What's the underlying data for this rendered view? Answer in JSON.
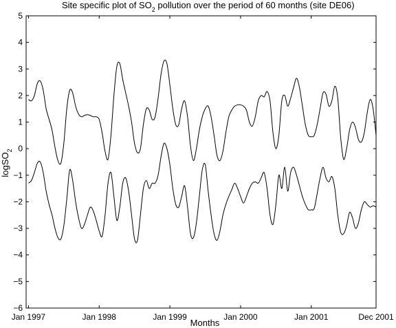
{
  "chart_data": {
    "type": "line",
    "title": "Site specific plot of SO₂ pollution over the period of 60 months (site DE06)",
    "title_parts": {
      "prefix": "Site specific plot of SO",
      "subscript": "2",
      "suffix": " pollution over the period of 60 months (site DE06)"
    },
    "xlabel": "Months",
    "ylabel": "logSO₂",
    "ylabel_parts": {
      "prefix": "logSO",
      "subscript": "2"
    },
    "x_tick_labels": [
      "Jan 1997",
      "Jan 1998",
      "Jan 1999",
      "Jan 2000",
      "Jan 2001",
      "Dec 2001"
    ],
    "x_tick_values": [
      0,
      12,
      24,
      36,
      48,
      59
    ],
    "xlim": [
      -0.4,
      59
    ],
    "y_ticks": [
      -6,
      -5,
      -4,
      -3,
      -2,
      -1,
      0,
      1,
      2,
      3,
      4,
      5
    ],
    "ylim": [
      -6,
      5
    ],
    "grid": false,
    "series": [
      {
        "points": [
          [
            0,
            1.85
          ],
          [
            0.5,
            1.8
          ],
          [
            1,
            2.0
          ],
          [
            1.5,
            2.45
          ],
          [
            2,
            2.55
          ],
          [
            2.5,
            2.2
          ],
          [
            3,
            1.5
          ],
          [
            3.5,
            1.1
          ],
          [
            4,
            0.7
          ],
          [
            4.5,
            0.05
          ],
          [
            5,
            -0.45
          ],
          [
            5.5,
            -0.55
          ],
          [
            6,
            0.2
          ],
          [
            6.5,
            1.5
          ],
          [
            7,
            2.2
          ],
          [
            7.5,
            2.1
          ],
          [
            8,
            1.6
          ],
          [
            8.5,
            1.3
          ],
          [
            9,
            1.2
          ],
          [
            9.5,
            1.25
          ],
          [
            10,
            1.28
          ],
          [
            10.5,
            1.25
          ],
          [
            11,
            1.2
          ],
          [
            11.5,
            1.2
          ],
          [
            12,
            1.1
          ],
          [
            12.5,
            0.6
          ],
          [
            13,
            -0.1
          ],
          [
            13.5,
            -0.4
          ],
          [
            14,
            0.5
          ],
          [
            14.5,
            2.0
          ],
          [
            15,
            3.1
          ],
          [
            15.5,
            3.2
          ],
          [
            16,
            2.6
          ],
          [
            16.5,
            2.1
          ],
          [
            17,
            1.6
          ],
          [
            17.5,
            1.0
          ],
          [
            18,
            0.2
          ],
          [
            18.5,
            -0.15
          ],
          [
            19,
            0.0
          ],
          [
            19.5,
            0.9
          ],
          [
            20,
            1.5
          ],
          [
            20.5,
            1.45
          ],
          [
            21,
            1.1
          ],
          [
            21.5,
            1.2
          ],
          [
            22,
            1.9
          ],
          [
            22.5,
            2.8
          ],
          [
            23,
            3.3
          ],
          [
            23.5,
            3.2
          ],
          [
            24,
            2.4
          ],
          [
            24.5,
            1.5
          ],
          [
            25,
            0.9
          ],
          [
            25.5,
            0.9
          ],
          [
            26,
            1.5
          ],
          [
            26.5,
            1.8
          ],
          [
            27,
            1.2
          ],
          [
            27.5,
            0.1
          ],
          [
            28,
            -0.45
          ],
          [
            28.5,
            0.0
          ],
          [
            29,
            0.7
          ],
          [
            29.5,
            1.2
          ],
          [
            30,
            1.5
          ],
          [
            30.5,
            1.6
          ],
          [
            31,
            1.2
          ],
          [
            31.5,
            0.5
          ],
          [
            32,
            -0.25
          ],
          [
            32.5,
            -0.45
          ],
          [
            33,
            -0.1
          ],
          [
            33.5,
            0.6
          ],
          [
            34,
            1.2
          ],
          [
            34.5,
            1.45
          ],
          [
            35,
            1.6
          ],
          [
            35.5,
            1.65
          ],
          [
            36,
            1.65
          ],
          [
            36.5,
            1.6
          ],
          [
            37,
            1.45
          ],
          [
            37.5,
            1.0
          ],
          [
            38,
            0.85
          ],
          [
            38.5,
            1.2
          ],
          [
            39,
            1.8
          ],
          [
            39.5,
            2.0
          ],
          [
            40,
            1.95
          ],
          [
            40.5,
            2.15
          ],
          [
            41,
            1.8
          ],
          [
            41.5,
            0.6
          ],
          [
            42,
            0.0
          ],
          [
            42.5,
            0.5
          ],
          [
            43,
            1.8
          ],
          [
            43.5,
            2.0
          ],
          [
            44,
            1.6
          ],
          [
            44.5,
            1.9
          ],
          [
            45,
            2.3
          ],
          [
            45.5,
            2.65
          ],
          [
            46,
            2.3
          ],
          [
            46.5,
            1.6
          ],
          [
            47,
            0.9
          ],
          [
            47.5,
            0.5
          ],
          [
            48,
            0.45
          ],
          [
            48.5,
            0.5
          ],
          [
            49,
            0.9
          ],
          [
            49.5,
            1.5
          ],
          [
            50,
            2.1
          ],
          [
            50.5,
            2.05
          ],
          [
            51,
            1.6
          ],
          [
            51.5,
            1.8
          ],
          [
            52,
            2.35
          ],
          [
            52.5,
            1.9
          ],
          [
            53,
            0.4
          ],
          [
            53.5,
            -0.4
          ],
          [
            54,
            0.0
          ],
          [
            54.5,
            0.7
          ],
          [
            55,
            1.0
          ],
          [
            55.5,
            0.8
          ],
          [
            56,
            0.35
          ],
          [
            56.5,
            0.25
          ],
          [
            57,
            0.6
          ],
          [
            57.5,
            1.35
          ],
          [
            58,
            1.85
          ],
          [
            58.5,
            1.5
          ],
          [
            59,
            0.5
          ]
        ]
      },
      {
        "points": [
          [
            0,
            -1.3
          ],
          [
            0.5,
            -1.2
          ],
          [
            1,
            -0.9
          ],
          [
            1.5,
            -0.55
          ],
          [
            2,
            -0.5
          ],
          [
            2.5,
            -0.9
          ],
          [
            3,
            -1.6
          ],
          [
            3.5,
            -2.1
          ],
          [
            4,
            -2.5
          ],
          [
            4.5,
            -3.0
          ],
          [
            5,
            -3.35
          ],
          [
            5.5,
            -3.4
          ],
          [
            6,
            -2.9
          ],
          [
            6.5,
            -1.9
          ],
          [
            7,
            -0.8
          ],
          [
            7.5,
            -1.2
          ],
          [
            8,
            -2.0
          ],
          [
            8.5,
            -2.6
          ],
          [
            9,
            -3.0
          ],
          [
            9.5,
            -2.85
          ],
          [
            10,
            -2.5
          ],
          [
            10.5,
            -2.2
          ],
          [
            11,
            -2.35
          ],
          [
            11.5,
            -2.7
          ],
          [
            12,
            -3.1
          ],
          [
            12.5,
            -3.3
          ],
          [
            13,
            -2.5
          ],
          [
            13.5,
            -1.3
          ],
          [
            14,
            -0.9
          ],
          [
            14.5,
            -1.8
          ],
          [
            15,
            -2.7
          ],
          [
            15.5,
            -2.2
          ],
          [
            16,
            -1.3
          ],
          [
            16.5,
            -1.1
          ],
          [
            17,
            -1.6
          ],
          [
            17.5,
            -2.5
          ],
          [
            18,
            -3.4
          ],
          [
            18.5,
            -3.45
          ],
          [
            19,
            -2.5
          ],
          [
            19.5,
            -1.5
          ],
          [
            20,
            -1.2
          ],
          [
            20.5,
            -1.5
          ],
          [
            21,
            -1.3
          ],
          [
            21.5,
            -1.3
          ],
          [
            22,
            -1.0
          ],
          [
            22.5,
            -0.3
          ],
          [
            23,
            0.2
          ],
          [
            23.5,
            0.0
          ],
          [
            24,
            -0.6
          ],
          [
            24.5,
            -1.5
          ],
          [
            25,
            -2.1
          ],
          [
            25.5,
            -2.2
          ],
          [
            26,
            -1.8
          ],
          [
            26.5,
            -1.4
          ],
          [
            27,
            -2.2
          ],
          [
            27.5,
            -3.2
          ],
          [
            28,
            -3.35
          ],
          [
            28.5,
            -2.8
          ],
          [
            29,
            -1.8
          ],
          [
            29.5,
            -0.8
          ],
          [
            30,
            -0.6
          ],
          [
            30.5,
            -1.6
          ],
          [
            31,
            -2.5
          ],
          [
            31.5,
            -3.2
          ],
          [
            32,
            -3.45
          ],
          [
            32.5,
            -3.1
          ],
          [
            33,
            -2.5
          ],
          [
            33.5,
            -2.1
          ],
          [
            34,
            -1.8
          ],
          [
            34.5,
            -1.55
          ],
          [
            35,
            -1.3
          ],
          [
            35.5,
            -1.5
          ],
          [
            36,
            -1.8
          ],
          [
            36.5,
            -2.05
          ],
          [
            37,
            -1.8
          ],
          [
            37.5,
            -1.5
          ],
          [
            38,
            -1.3
          ],
          [
            38.5,
            -1.25
          ],
          [
            39,
            -1.3
          ],
          [
            39.5,
            -1.1
          ],
          [
            40,
            -0.9
          ],
          [
            40.5,
            -1.5
          ],
          [
            41,
            -2.5
          ],
          [
            41.5,
            -2.85
          ],
          [
            42,
            -2.1
          ],
          [
            42.5,
            -1.0
          ],
          [
            43,
            -1.5
          ],
          [
            43.5,
            -0.7
          ],
          [
            44,
            -1.6
          ],
          [
            44.5,
            -0.9
          ],
          [
            45,
            -0.7
          ],
          [
            45.5,
            -1.0
          ],
          [
            46,
            -1.4
          ],
          [
            46.5,
            -1.8
          ],
          [
            47,
            -2.1
          ],
          [
            47.5,
            -2.3
          ],
          [
            48,
            -2.3
          ],
          [
            48.5,
            -2.25
          ],
          [
            49,
            -1.7
          ],
          [
            49.5,
            -1.1
          ],
          [
            50,
            -0.7
          ],
          [
            50.5,
            -1.1
          ],
          [
            51,
            -1.25
          ],
          [
            51.5,
            -1.05
          ],
          [
            52,
            -1.5
          ],
          [
            52.5,
            -2.5
          ],
          [
            53,
            -3.15
          ],
          [
            53.5,
            -3.2
          ],
          [
            54,
            -2.9
          ],
          [
            54.5,
            -2.4
          ],
          [
            55,
            -2.6
          ],
          [
            55.5,
            -3.0
          ],
          [
            56,
            -2.8
          ],
          [
            56.5,
            -2.3
          ],
          [
            57,
            -2.0
          ],
          [
            57.5,
            -2.1
          ],
          [
            58,
            -2.2
          ],
          [
            58.5,
            -2.15
          ],
          [
            59,
            -2.2
          ]
        ]
      }
    ]
  }
}
